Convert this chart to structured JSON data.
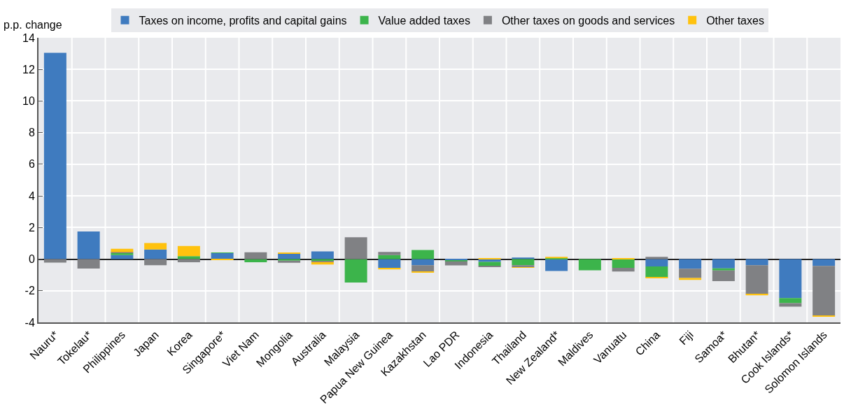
{
  "chart_data": {
    "type": "bar",
    "stacked": true,
    "ylabel": "p.p. change",
    "categories": [
      "Nauru*",
      "Tokelau*",
      "Philippines",
      "Japan",
      "Korea",
      "Singapore*",
      "Viet Nam",
      "Mongolia",
      "Australia",
      "Malaysia",
      "Papua New Guinea",
      "Kazakhstan",
      "Lao PDR",
      "Indonesia",
      "Thailand",
      "New Zealand*",
      "Maldives",
      "Vanuatu",
      "China",
      "Fiji",
      "Samoa*",
      "Bhutan*",
      "Cook Islands*",
      "Solomon Islands"
    ],
    "series": [
      {
        "name": "Taxes on income, profits and capital gains",
        "color": "#3f7bbf",
        "values": [
          13.05,
          1.75,
          0.26,
          0.61,
          null,
          0.38,
          null,
          0.36,
          0.49,
          null,
          -0.55,
          -0.38,
          -0.08,
          -0.17,
          0.1,
          -0.75,
          null,
          null,
          -0.46,
          -0.61,
          -0.58,
          -0.38,
          -2.46,
          -0.43
        ]
      },
      {
        "name": "Value added taxes",
        "color": "#3cb44b",
        "values": [
          null,
          null,
          0.12,
          null,
          0.19,
          0.03,
          -0.2,
          -0.1,
          -0.12,
          -1.48,
          0.26,
          0.58,
          -0.06,
          -0.26,
          -0.38,
          0.06,
          -0.7,
          -0.55,
          -0.7,
          null,
          -0.14,
          null,
          -0.32,
          null
        ]
      },
      {
        "name": "Other taxes on goods and services",
        "color": "#808184",
        "values": [
          -0.22,
          -0.6,
          0.07,
          -0.38,
          -0.2,
          null,
          0.43,
          -0.13,
          -0.06,
          1.39,
          0.2,
          -0.43,
          -0.26,
          -0.05,
          -0.14,
          null,
          null,
          -0.23,
          0.15,
          -0.58,
          -0.67,
          -1.84,
          -0.23,
          -3.16
        ]
      },
      {
        "name": "Other taxes",
        "color": "#ffc20e",
        "values": [
          null,
          null,
          0.2,
          0.41,
          0.64,
          -0.03,
          null,
          0.04,
          -0.16,
          null,
          -0.1,
          -0.05,
          null,
          0.07,
          -0.03,
          0.09,
          null,
          0.04,
          -0.03,
          -0.12,
          null,
          -0.07,
          null,
          -0.03
        ]
      }
    ],
    "ylim": [
      -4,
      14
    ],
    "yticks": [
      -4,
      -2,
      0,
      2,
      4,
      6,
      8,
      10,
      12,
      14
    ],
    "grid": true,
    "legend": "top"
  }
}
